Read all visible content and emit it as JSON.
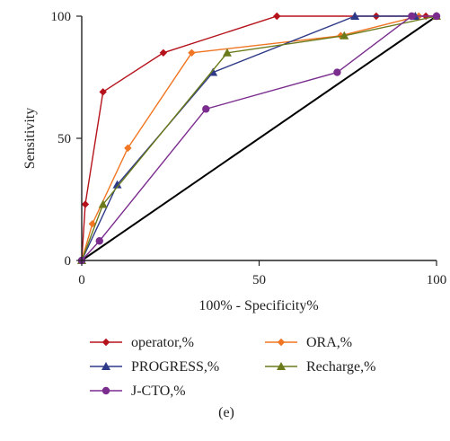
{
  "chart_data": {
    "type": "line",
    "xlabel": "100% - Specificity%",
    "ylabel": "Sensitivity",
    "xlim": [
      0,
      100
    ],
    "ylim": [
      0,
      100
    ],
    "x_ticks": [
      0,
      50,
      100
    ],
    "y_ticks": [
      0,
      50,
      100
    ],
    "grid": false,
    "legend_position": "bottom",
    "caption": "(e)",
    "reference_line": {
      "x": [
        0,
        100
      ],
      "y": [
        0,
        100
      ],
      "color": "#000000"
    },
    "series": [
      {
        "name": "operator,%",
        "color": "#b5121b",
        "marker": "diamond",
        "x": [
          0,
          1,
          6,
          23,
          55,
          83,
          93,
          97,
          100
        ],
        "y": [
          0,
          23,
          69,
          85,
          100,
          100,
          100,
          100,
          100
        ]
      },
      {
        "name": "ORA,%",
        "color": "#f07623",
        "marker": "diamond",
        "x": [
          0,
          3,
          13,
          31,
          73,
          95,
          100
        ],
        "y": [
          0,
          15,
          46,
          85,
          92,
          100,
          100
        ]
      },
      {
        "name": "PROGRESS,%",
        "color": "#2e3a87",
        "marker": "triangle",
        "x": [
          0,
          10,
          37,
          77,
          94
        ],
        "y": [
          0,
          31,
          77,
          100,
          100
        ]
      },
      {
        "name": "Recharge,%",
        "color": "#6b7a1a",
        "marker": "triangle",
        "x": [
          0,
          6,
          41,
          74,
          100
        ],
        "y": [
          0,
          23,
          85,
          92,
          100
        ]
      },
      {
        "name": "J-CTO,%",
        "color": "#7b2d8e",
        "marker": "circle",
        "x": [
          0,
          5,
          35,
          72,
          93,
          100
        ],
        "y": [
          0,
          8,
          62,
          77,
          100,
          100
        ]
      }
    ]
  }
}
